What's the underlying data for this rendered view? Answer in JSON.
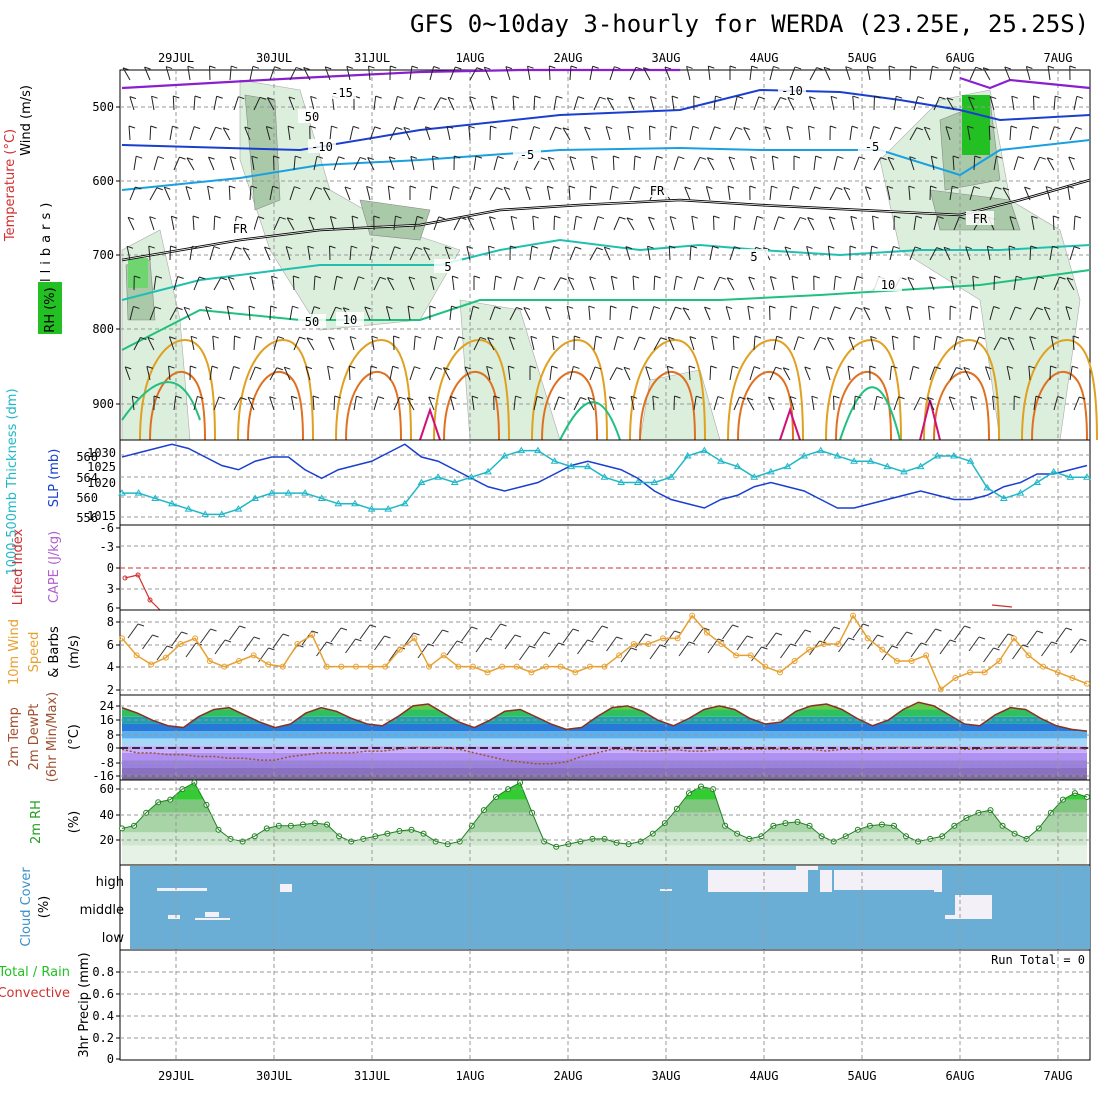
{
  "title": "GFS 0~10day 3-hourly for WERDA (23.25E, 25.25S)",
  "dates": [
    "29JUL",
    "30JUL",
    "31JUL",
    "1AUG",
    "2AUG",
    "3AUG",
    "4AUG",
    "5AUG",
    "6AUG",
    "7AUG"
  ],
  "colors": {
    "rh_green": "#22c022",
    "temp_purple": "#8a1fd0",
    "temp_blue": "#1a3fd0",
    "temp_lightblue": "#1aa0e0",
    "temp_teal": "#20c0b0",
    "temp_green": "#20c080",
    "temp_orange": "#e0a020",
    "temp_magenta": "#d0107a",
    "slp_blue": "#1a3fd0",
    "thickness_cyan": "#20b8c8",
    "wind_orange": "#e8a030",
    "cloud_blue": "#6aaed6",
    "cape_red": "#d03030"
  },
  "panels": {
    "upper": {
      "ylabel_wind": "Wind (m/s)",
      "ylabel_temp": "Temperature (°C)",
      "ylabel_rh": "RH (%)",
      "ylabel_mb": "(millibars)",
      "yticks": [
        "500",
        "600",
        "700",
        "800",
        "900"
      ],
      "contour_labels": [
        "-15",
        "-10",
        "-10",
        "-5",
        "-5",
        "FR",
        "FR",
        "FR",
        "5",
        "5",
        "10",
        "10",
        "50",
        "50"
      ]
    },
    "slp": {
      "ylabel_thick": "1000-500mb Thickness (dm)",
      "ylabel_slp": "SLP (mb)",
      "yticks_left": [
        "568",
        "564",
        "560",
        "556"
      ],
      "yticks_right": [
        "1030",
        "1025",
        "1020",
        "1015"
      ]
    },
    "li": {
      "ylabel_li": "Lifted Index",
      "ylabel_cape": "CAPE (J/kg)",
      "yticks": [
        "-6",
        "-3",
        "0",
        "3",
        "6"
      ]
    },
    "wind": {
      "ylabel_a": "10m Wind",
      "ylabel_b": "Speed",
      "ylabel_c": "& Barbs",
      "ylabel_unit": "(m/s)",
      "yticks": [
        "8",
        "6",
        "4",
        "2"
      ]
    },
    "temp": {
      "ylabel_a": "2m Temp",
      "ylabel_b": "2m DewPt",
      "ylabel_c": "(6hr Min/Max)",
      "ylabel_unit": "(°C)",
      "yticks": [
        "24",
        "16",
        "8",
        "0",
        "-8",
        "-16"
      ]
    },
    "rh": {
      "ylabel": "2m RH",
      "ylabel_unit": "(%)",
      "yticks": [
        "60",
        "40",
        "20"
      ]
    },
    "cloud": {
      "ylabel": "Cloud Cover",
      "ylabel_unit": "(%)",
      "yticks": [
        "high",
        "middle",
        "low"
      ]
    },
    "precip": {
      "ylabel_a": "Total / Rain",
      "ylabel_b": "Convective",
      "ylabel_c": "3hr Precip (mm)",
      "yticks": [
        "0.8",
        "0.6",
        "0.4",
        "0.2",
        "0"
      ],
      "run_total": "Run Total = 0"
    }
  },
  "chart_data": [
    {
      "type": "line",
      "name": "slp_thickness",
      "xlabel_ticks": [
        "29JUL",
        "30JUL",
        "31JUL",
        "1AUG",
        "2AUG",
        "3AUG",
        "4AUG",
        "5AUG",
        "6AUG",
        "7AUG"
      ],
      "series": [
        {
          "name": "SLP (mb)",
          "values": [
            1028,
            1029,
            1030,
            1031,
            1030,
            1028,
            1026,
            1025,
            1027,
            1028,
            1028,
            1025,
            1023,
            1025,
            1026,
            1027,
            1029,
            1031,
            1028,
            1027,
            1025,
            1023,
            1021,
            1020,
            1021,
            1022,
            1024,
            1026,
            1027,
            1026,
            1025,
            1023,
            1020,
            1018,
            1017,
            1016,
            1018,
            1019,
            1021,
            1022,
            1021,
            1020,
            1018,
            1016,
            1016,
            1017,
            1018,
            1019,
            1020,
            1019,
            1018,
            1018,
            1019,
            1021,
            1022,
            1024,
            1024,
            1025,
            1026
          ]
        },
        {
          "name": "1000-500mb Thickness (dm)",
          "values": [
            560,
            560,
            559,
            558,
            557,
            556,
            556,
            557,
            559,
            560,
            560,
            560,
            559,
            558,
            558,
            557,
            557,
            558,
            562,
            563,
            562,
            563,
            564,
            567,
            568,
            568,
            566,
            565,
            565,
            563,
            562,
            562,
            562,
            563,
            567,
            568,
            566,
            565,
            563,
            564,
            565,
            567,
            568,
            567,
            566,
            566,
            565,
            564,
            565,
            567,
            567,
            566,
            561,
            559,
            560,
            562,
            564,
            563,
            563
          ]
        }
      ],
      "ylim_thickness": [
        554,
        570
      ],
      "ylim_slp": [
        1012,
        1032
      ]
    },
    {
      "type": "line",
      "name": "lifted_index",
      "series": [
        {
          "name": "Lifted Index",
          "values": [
            2,
            1.5,
            4.5,
            6
          ]
        }
      ],
      "ylim": [
        6,
        -6
      ]
    },
    {
      "type": "line",
      "name": "10m_wind",
      "series": [
        {
          "name": "10m Wind Speed (m/s)",
          "values": [
            6.5,
            5,
            4.2,
            4.8,
            6,
            6.5,
            4.5,
            4,
            4.5,
            5,
            4.2,
            4,
            6,
            6.8,
            4,
            4,
            4,
            4,
            4,
            5.5,
            6.5,
            4,
            5,
            4,
            4,
            3.5,
            4,
            4,
            3.5,
            4,
            4,
            3.5,
            4,
            4,
            5,
            6,
            6,
            6.5,
            6.5,
            8.5,
            7,
            6,
            5,
            5,
            4,
            3.5,
            4.5,
            5.5,
            6,
            6,
            8.5,
            6.5,
            5.5,
            4.5,
            4.5,
            5,
            2,
            3,
            3.5,
            3.5,
            4.5,
            6.5,
            5,
            4,
            3.5,
            3,
            2.5
          ]
        }
      ],
      "ylim": [
        1.5,
        9
      ]
    },
    {
      "type": "area",
      "name": "2m_temp",
      "series": [
        {
          "name": "2m Temp (°C)",
          "values": [
            21,
            18,
            14,
            11,
            10,
            16,
            20,
            21,
            17,
            13,
            10,
            12,
            18,
            21,
            19,
            15,
            12,
            11,
            16,
            22,
            23,
            18,
            13,
            10,
            14,
            19,
            20,
            16,
            12,
            9,
            10,
            16,
            21,
            22,
            19,
            14,
            11,
            15,
            20,
            22,
            20,
            15,
            12,
            13,
            19,
            22,
            23,
            20,
            15,
            11,
            14,
            20,
            24,
            22,
            17,
            12,
            11,
            17,
            21,
            20,
            15,
            11,
            9,
            8
          ]
        },
        {
          "name": "2m DewPt (°C)",
          "values": [
            -2,
            -4,
            -4,
            -5,
            -5,
            -6,
            -6,
            -7,
            -7,
            -8,
            -8,
            -6,
            -5,
            -4,
            -4,
            -4,
            -3,
            -3,
            -2,
            -1,
            -1,
            -1,
            -2,
            -4,
            -6,
            -8,
            -9,
            -10,
            -10,
            -9,
            -6,
            -4,
            -2,
            -2,
            -3,
            -3,
            -2,
            -3,
            -3,
            -2,
            -2,
            -2,
            -2,
            -2,
            -2,
            -2,
            -3,
            -2,
            -2,
            -2,
            -1,
            -1,
            -1,
            -1,
            -1,
            -2,
            -2,
            -1,
            -1,
            -1,
            -1,
            -1,
            -1,
            -2
          ]
        }
      ],
      "ylim": [
        -19,
        28
      ]
    },
    {
      "type": "area",
      "name": "2m_rh",
      "series": [
        {
          "name": "2m RH (%)",
          "values": [
            28,
            30,
            40,
            48,
            50,
            58,
            63,
            46,
            27,
            20,
            18,
            22,
            28,
            30,
            30,
            31,
            32,
            31,
            22,
            18,
            20,
            22,
            24,
            26,
            27,
            24,
            18,
            16,
            18,
            30,
            42,
            52,
            58,
            63,
            40,
            18,
            14,
            16,
            18,
            20,
            20,
            17,
            16,
            18,
            24,
            32,
            43,
            55,
            60,
            58,
            30,
            24,
            20,
            22,
            30,
            32,
            33,
            30,
            22,
            18,
            22,
            27,
            30,
            31,
            30,
            22,
            18,
            20,
            22,
            30,
            36,
            40,
            42,
            30,
            24,
            20,
            28,
            40,
            50,
            55,
            52
          ]
        }
      ],
      "ylim": [
        0,
        65
      ]
    },
    {
      "type": "table",
      "name": "cloud_cover",
      "rows": [
        "high",
        "middle",
        "low"
      ]
    },
    {
      "type": "bar",
      "name": "precip",
      "series": [
        {
          "name": "3hr Precip (mm)",
          "values": []
        }
      ],
      "ylim": [
        0,
        1
      ]
    }
  ]
}
